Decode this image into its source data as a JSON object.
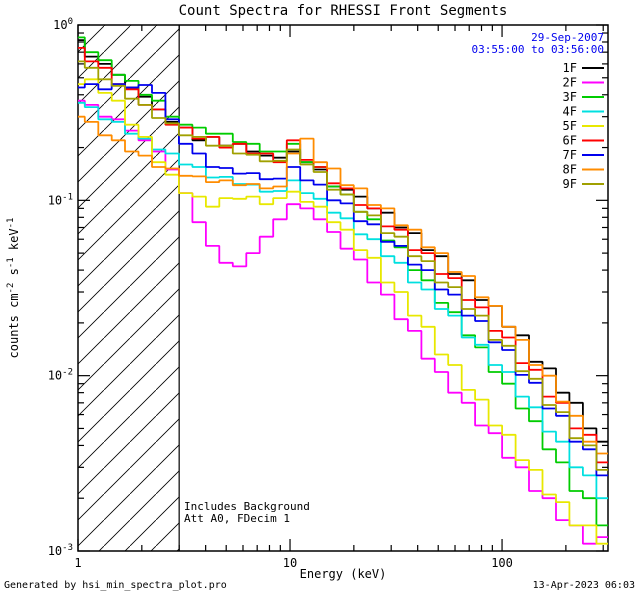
{
  "title": "Count Spectra for RHESSI Front Segments",
  "header_annotations": {
    "date": "29-Sep-2007",
    "time_range": "03:55:00 to 03:56:00",
    "color": "#0000EE"
  },
  "plot_notes": {
    "line1": "Includes Background",
    "line2": "Att A0, FDecim 1"
  },
  "footer": {
    "left": "Generated by hsi_min_spectra_plot.pro",
    "right": "13-Apr-2023 06:03"
  },
  "chart_data": {
    "type": "line",
    "style": "histogram-step",
    "title": "Count Spectra for RHESSI Front Segments",
    "xlabel": "Energy (keV)",
    "ylabel": "counts cm-2 s-1 keV-1",
    "ylabel_segments": [
      {
        "text": "counts cm"
      },
      {
        "text": "-2",
        "sup": true
      },
      {
        "text": " s"
      },
      {
        "text": "-1",
        "sup": true
      },
      {
        "text": " keV"
      },
      {
        "text": "-1",
        "sup": true
      }
    ],
    "xscale": "log",
    "yscale": "log",
    "xlim": [
      1,
      316
    ],
    "ylim": [
      0.001,
      1.0
    ],
    "grid": false,
    "legend_position": "inside-top-right",
    "x_ticks": [
      {
        "value": 1,
        "label": "1"
      },
      {
        "value": 10,
        "label": "10"
      },
      {
        "value": 100,
        "label": "100"
      }
    ],
    "y_ticks": [
      {
        "value": 1,
        "exp": "0"
      },
      {
        "value": 0.1,
        "exp": "-1"
      },
      {
        "value": 0.01,
        "exp": "-2"
      },
      {
        "value": 0.001,
        "exp": "-3"
      }
    ],
    "excluded_band": {
      "x_range": [
        1,
        3
      ],
      "style": "diagonal-hatch"
    },
    "x": [
      1.0,
      1.16,
      1.34,
      1.55,
      1.79,
      2.08,
      2.4,
      2.78,
      3.22,
      3.73,
      4.31,
      4.99,
      5.78,
      6.69,
      7.74,
      8.96,
      10.4,
      12.0,
      13.9,
      16.1,
      18.6,
      21.5,
      24.9,
      28.9,
      33.4,
      38.7,
      44.8,
      51.8,
      60.0,
      69.4,
      80.3,
      93.0,
      107.6,
      124.6,
      144.2,
      166.9,
      193.2,
      223.6,
      258.8,
      299.6
    ],
    "series": [
      {
        "name": "1F",
        "color": "#000000",
        "values": [
          0.82,
          0.66,
          0.6,
          0.52,
          0.44,
          0.39,
          0.33,
          0.28,
          0.26,
          0.22,
          0.23,
          0.205,
          0.21,
          0.19,
          0.18,
          0.175,
          0.19,
          0.165,
          0.15,
          0.12,
          0.115,
          0.105,
          0.09,
          0.085,
          0.07,
          0.065,
          0.052,
          0.048,
          0.038,
          0.035,
          0.027,
          0.025,
          0.019,
          0.017,
          0.012,
          0.011,
          0.008,
          0.007,
          0.005,
          0.0042
        ]
      },
      {
        "name": "2F",
        "color": "#FF00FF",
        "values": [
          0.37,
          0.35,
          0.3,
          0.29,
          0.25,
          0.22,
          0.19,
          0.15,
          0.11,
          0.075,
          0.055,
          0.044,
          0.042,
          0.05,
          0.062,
          0.078,
          0.095,
          0.09,
          0.078,
          0.066,
          0.053,
          0.046,
          0.034,
          0.029,
          0.021,
          0.018,
          0.0125,
          0.0105,
          0.008,
          0.007,
          0.0052,
          0.0047,
          0.0034,
          0.003,
          0.0022,
          0.002,
          0.0015,
          0.0014,
          0.0011,
          0.0012
        ]
      },
      {
        "name": "3F",
        "color": "#00CC00",
        "values": [
          0.85,
          0.7,
          0.63,
          0.52,
          0.48,
          0.4,
          0.37,
          0.3,
          0.27,
          0.26,
          0.24,
          0.24,
          0.215,
          0.21,
          0.19,
          0.19,
          0.21,
          0.165,
          0.155,
          0.12,
          0.108,
          0.086,
          0.078,
          0.059,
          0.054,
          0.04,
          0.035,
          0.026,
          0.023,
          0.017,
          0.0145,
          0.0105,
          0.009,
          0.0065,
          0.0055,
          0.0038,
          0.0032,
          0.0022,
          0.002,
          0.0014
        ]
      },
      {
        "name": "4F",
        "color": "#00E0E0",
        "values": [
          0.36,
          0.34,
          0.29,
          0.28,
          0.24,
          0.225,
          0.195,
          0.185,
          0.16,
          0.155,
          0.135,
          0.136,
          0.124,
          0.123,
          0.112,
          0.113,
          0.13,
          0.11,
          0.102,
          0.085,
          0.079,
          0.064,
          0.06,
          0.048,
          0.044,
          0.034,
          0.031,
          0.024,
          0.022,
          0.0165,
          0.015,
          0.0115,
          0.0105,
          0.0076,
          0.0066,
          0.0048,
          0.0042,
          0.003,
          0.0027,
          0.002
        ]
      },
      {
        "name": "5F",
        "color": "#E8E800",
        "values": [
          0.46,
          0.49,
          0.41,
          0.37,
          0.27,
          0.23,
          0.165,
          0.14,
          0.11,
          0.105,
          0.092,
          0.103,
          0.102,
          0.105,
          0.095,
          0.103,
          0.112,
          0.098,
          0.092,
          0.075,
          0.068,
          0.052,
          0.047,
          0.034,
          0.03,
          0.022,
          0.019,
          0.0132,
          0.0115,
          0.0083,
          0.0073,
          0.0052,
          0.0046,
          0.0033,
          0.0029,
          0.0021,
          0.0019,
          0.0014,
          0.0014,
          0.0011
        ]
      },
      {
        "name": "6F",
        "color": "#FF0000",
        "values": [
          0.74,
          0.62,
          0.57,
          0.46,
          0.43,
          0.35,
          0.33,
          0.27,
          0.26,
          0.225,
          0.23,
          0.2,
          0.21,
          0.185,
          0.185,
          0.165,
          0.22,
          0.17,
          0.155,
          0.125,
          0.117,
          0.094,
          0.09,
          0.071,
          0.068,
          0.052,
          0.05,
          0.038,
          0.036,
          0.027,
          0.0245,
          0.018,
          0.0165,
          0.0118,
          0.0108,
          0.0076,
          0.007,
          0.005,
          0.0046,
          0.0032
        ]
      },
      {
        "name": "7F",
        "color": "#0000EE",
        "values": [
          0.44,
          0.46,
          0.43,
          0.46,
          0.44,
          0.455,
          0.41,
          0.29,
          0.21,
          0.185,
          0.155,
          0.153,
          0.142,
          0.143,
          0.132,
          0.133,
          0.155,
          0.13,
          0.123,
          0.1,
          0.096,
          0.076,
          0.073,
          0.058,
          0.055,
          0.043,
          0.04,
          0.031,
          0.029,
          0.022,
          0.0205,
          0.0155,
          0.014,
          0.0101,
          0.0091,
          0.0065,
          0.0059,
          0.0042,
          0.0038,
          0.0027
        ]
      },
      {
        "name": "8F",
        "color": "#FF8C00",
        "values": [
          0.3,
          0.28,
          0.235,
          0.22,
          0.19,
          0.18,
          0.155,
          0.152,
          0.138,
          0.137,
          0.127,
          0.13,
          0.122,
          0.124,
          0.117,
          0.12,
          0.185,
          0.225,
          0.165,
          0.152,
          0.122,
          0.117,
          0.094,
          0.09,
          0.072,
          0.068,
          0.054,
          0.05,
          0.039,
          0.037,
          0.028,
          0.025,
          0.019,
          0.016,
          0.0115,
          0.01,
          0.0071,
          0.0059,
          0.0042,
          0.0036
        ]
      },
      {
        "name": "9F",
        "color": "#A0A000",
        "values": [
          0.62,
          0.57,
          0.49,
          0.45,
          0.38,
          0.35,
          0.295,
          0.275,
          0.235,
          0.23,
          0.205,
          0.205,
          0.185,
          0.182,
          0.167,
          0.168,
          0.195,
          0.16,
          0.145,
          0.115,
          0.108,
          0.086,
          0.082,
          0.065,
          0.062,
          0.048,
          0.045,
          0.034,
          0.032,
          0.024,
          0.022,
          0.016,
          0.0148,
          0.0106,
          0.0096,
          0.0068,
          0.0062,
          0.0044,
          0.004,
          0.0029
        ]
      }
    ]
  }
}
